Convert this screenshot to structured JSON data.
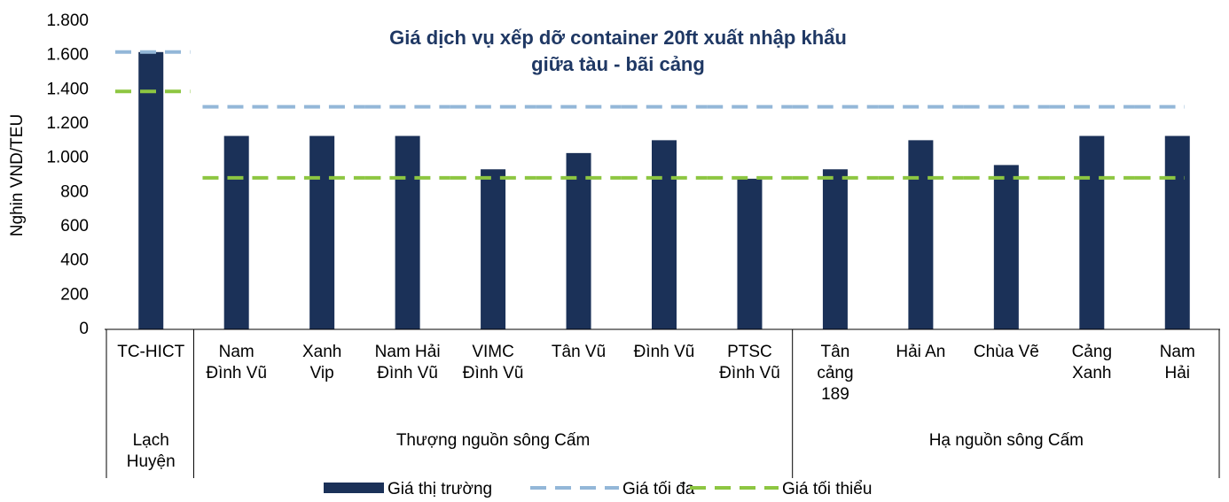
{
  "chart_data": {
    "type": "bar",
    "title": "Giá dịch vụ xếp dỡ container 20ft xuất nhập khẩu\ngiữa tàu - bãi cảng",
    "ylabel": "Nghin VND/TEU",
    "categories": [
      "TC-HICT",
      "Nam\nĐình Vũ",
      "Xanh\nVip",
      "Nam Hải\nĐình Vũ",
      "VIMC\nĐình Vũ",
      "Tân Vũ",
      "Đình Vũ",
      "PTSC\nĐình Vũ",
      "Tân\ncảng\n189",
      "Hải An",
      "Chùa Vẽ",
      "Cảng\nXanh",
      "Nam Hải"
    ],
    "groups": [
      {
        "label": "Lạch\nHuyện",
        "count": 1
      },
      {
        "label": "Thượng nguồn sông Cấm",
        "count": 7
      },
      {
        "label": "Hạ nguồn sông Cấm",
        "count": 5
      }
    ],
    "series": [
      {
        "name": "Giá thị trường",
        "color": "#1b3158",
        "kind": "bar",
        "values": [
          1620,
          1130,
          1130,
          1130,
          935,
          1030,
          1105,
          880,
          935,
          1105,
          960,
          1130,
          1130
        ]
      },
      {
        "name": "Giá tối đa",
        "color": "#93b7d8",
        "kind": "line",
        "values": [
          1620,
          1300,
          1300,
          1300,
          1300,
          1300,
          1300,
          1300,
          1300,
          1300,
          1300,
          1300,
          1300
        ]
      },
      {
        "name": "Giá tối thiểu",
        "color": "#8dc641",
        "kind": "line",
        "values": [
          1390,
          885,
          885,
          885,
          885,
          885,
          885,
          885,
          885,
          885,
          885,
          885,
          885
        ]
      }
    ],
    "ylim": [
      0,
      1800
    ],
    "yticks": [
      0,
      200,
      400,
      600,
      800,
      {
        "value": 1000,
        "label": "1.000"
      },
      {
        "value": 1200,
        "label": "1.200"
      },
      {
        "value": 1400,
        "label": "1.400"
      },
      {
        "value": 1600,
        "label": "1.600"
      },
      {
        "value": 1800,
        "label": "1.800"
      }
    ]
  }
}
